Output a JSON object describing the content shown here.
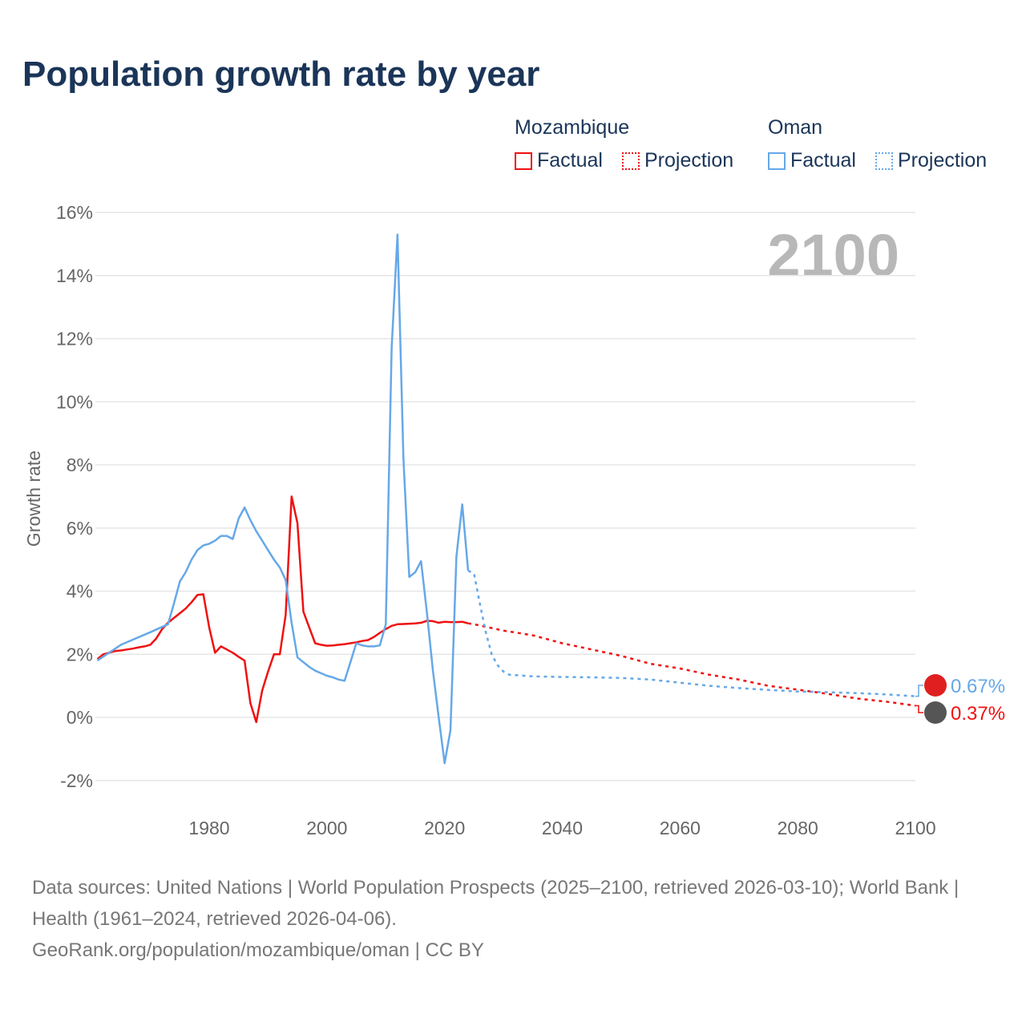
{
  "title": "Population growth rate by year",
  "legend": {
    "mozambique": "Mozambique",
    "oman": "Oman",
    "factual": "Factual",
    "projection": "Projection"
  },
  "year_label": "2100",
  "end_labels": {
    "oman": "0.67%",
    "mozambique": "0.37%"
  },
  "footer": {
    "line1": "Data sources: United Nations | World Population Prospects (2025–2100, retrieved 2026-03-10); World Bank | Health (1961–2024, retrieved 2026-04-06).",
    "line2": "GeoRank.org/population/mozambique/oman | CC BY"
  },
  "colors": {
    "mozambique": "#f01010",
    "oman": "#66a8e8"
  },
  "chart_data": {
    "type": "line",
    "title": "Population growth rate by year",
    "xlabel": "",
    "ylabel": "Growth rate",
    "xlim": [
      1961,
      2100
    ],
    "ylim": [
      -3,
      16.5
    ],
    "xticks": [
      1980,
      2000,
      2020,
      2040,
      2060,
      2080,
      2100
    ],
    "yticks": [
      -2,
      0,
      2,
      4,
      6,
      8,
      10,
      12,
      14,
      16
    ],
    "ytick_labels": [
      "-2%",
      "0%",
      "2%",
      "4%",
      "6%",
      "8%",
      "10%",
      "12%",
      "14%",
      "16%"
    ],
    "series": [
      {
        "name": "Mozambique Factual",
        "key": "mozambique",
        "dashed": false,
        "x": [
          1961,
          1962,
          1963,
          1964,
          1965,
          1966,
          1967,
          1968,
          1969,
          1970,
          1971,
          1972,
          1973,
          1974,
          1975,
          1976,
          1977,
          1978,
          1979,
          1980,
          1981,
          1982,
          1983,
          1984,
          1985,
          1986,
          1987,
          1988,
          1989,
          1990,
          1991,
          1992,
          1993,
          1994,
          1995,
          1996,
          1997,
          1998,
          1999,
          2000,
          2001,
          2002,
          2003,
          2004,
          2005,
          2006,
          2007,
          2008,
          2009,
          2010,
          2011,
          2012,
          2013,
          2014,
          2015,
          2016,
          2017,
          2018,
          2019,
          2020,
          2021,
          2022,
          2023,
          2024
        ],
        "y": [
          1.85,
          2.0,
          2.05,
          2.1,
          2.12,
          2.15,
          2.18,
          2.22,
          2.25,
          2.3,
          2.5,
          2.8,
          3.0,
          3.15,
          3.3,
          3.45,
          3.65,
          3.88,
          3.9,
          2.85,
          2.05,
          2.25,
          2.15,
          2.05,
          1.92,
          1.8,
          0.45,
          -0.15,
          0.85,
          1.45,
          2.0,
          2.0,
          3.25,
          7.0,
          6.15,
          3.35,
          2.85,
          2.35,
          2.3,
          2.27,
          2.28,
          2.3,
          2.32,
          2.35,
          2.38,
          2.42,
          2.45,
          2.55,
          2.68,
          2.8,
          2.9,
          2.95,
          2.96,
          2.97,
          2.98,
          3.0,
          3.06,
          3.05,
          3.0,
          3.03,
          3.02,
          3.02,
          3.03,
          2.98
        ]
      },
      {
        "name": "Mozambique Projection",
        "key": "mozambique",
        "dashed": true,
        "x": [
          2024,
          2025,
          2030,
          2035,
          2040,
          2045,
          2050,
          2055,
          2060,
          2065,
          2070,
          2075,
          2080,
          2085,
          2090,
          2095,
          2100
        ],
        "y": [
          2.98,
          2.95,
          2.75,
          2.6,
          2.35,
          2.15,
          1.95,
          1.7,
          1.55,
          1.35,
          1.2,
          1.0,
          0.88,
          0.75,
          0.6,
          0.5,
          0.37
        ]
      },
      {
        "name": "Oman Factual",
        "key": "oman",
        "dashed": false,
        "x": [
          1961,
          1965,
          1970,
          1973,
          1974,
          1975,
          1976,
          1977,
          1978,
          1979,
          1980,
          1981,
          1982,
          1983,
          1984,
          1985,
          1986,
          1987,
          1988,
          1989,
          1990,
          1991,
          1992,
          1993,
          1994,
          1995,
          1996,
          1997,
          1998,
          1999,
          2000,
          2001,
          2002,
          2003,
          2004,
          2005,
          2006,
          2007,
          2008,
          2009,
          2010,
          2011,
          2012,
          2013,
          2014,
          2015,
          2016,
          2017,
          2018,
          2019,
          2020,
          2021,
          2022,
          2023,
          2024
        ],
        "y": [
          1.8,
          2.3,
          2.7,
          2.95,
          3.6,
          4.3,
          4.6,
          5.0,
          5.3,
          5.45,
          5.5,
          5.6,
          5.75,
          5.75,
          5.65,
          6.3,
          6.65,
          6.25,
          5.9,
          5.6,
          5.3,
          5.0,
          4.75,
          4.35,
          3.0,
          1.9,
          1.75,
          1.6,
          1.48,
          1.4,
          1.32,
          1.27,
          1.2,
          1.16,
          1.75,
          2.35,
          2.28,
          2.25,
          2.25,
          2.28,
          2.95,
          11.7,
          15.3,
          8.2,
          4.45,
          4.6,
          4.95,
          3.3,
          1.5,
          0.0,
          -1.45,
          -0.4,
          5.1,
          6.75,
          4.65
        ]
      },
      {
        "name": "Oman Projection",
        "key": "oman",
        "dashed": true,
        "x": [
          2024,
          2025,
          2026,
          2027,
          2028,
          2029,
          2030,
          2031,
          2035,
          2040,
          2045,
          2050,
          2055,
          2060,
          2065,
          2070,
          2075,
          2080,
          2085,
          2090,
          2095,
          2100
        ],
        "y": [
          4.65,
          4.55,
          3.6,
          2.7,
          2.0,
          1.65,
          1.45,
          1.35,
          1.3,
          1.28,
          1.27,
          1.25,
          1.2,
          1.1,
          1.0,
          0.93,
          0.87,
          0.82,
          0.8,
          0.77,
          0.73,
          0.67
        ]
      }
    ]
  }
}
